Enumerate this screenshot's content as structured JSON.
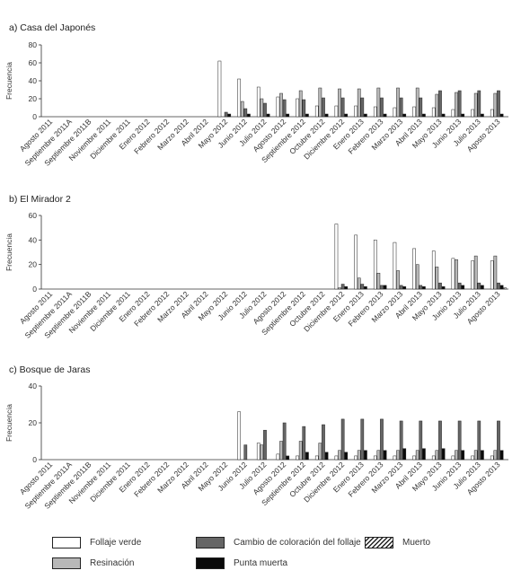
{
  "chart_data": {
    "type": "bar",
    "ylabel": "Frecuencia",
    "categories": [
      "Agosto 2011",
      "Septiembre 2011A",
      "Septiembre 2011B",
      "Noviembre 2011",
      "Diciembre 2011",
      "Enero 2012",
      "Febrero 2012",
      "Marzo 2012",
      "Abril 2012",
      "Mayo 2012",
      "Junio 2012",
      "Julio 2012",
      "Agosto 2012",
      "Septiembre 2012",
      "Octubre 2012",
      "Diciembre 2012",
      "Enero 2013",
      "Febrero 2013",
      "Marzo 2013",
      "Abril 2013",
      "Mayo 2013",
      "Junio 2013",
      "Julio 2013",
      "Agosto 2013"
    ],
    "legend": [
      {
        "name": "Follaje verde",
        "color": "#ffffff"
      },
      {
        "name": "Resinación",
        "color": "#b8b8b8"
      },
      {
        "name": "Cambio de coloración del follaje",
        "color": "#666666"
      },
      {
        "name": "Punta muerta",
        "color": "#0a0a0a"
      },
      {
        "name": "Muerto",
        "color": "hatched"
      }
    ],
    "panels": [
      {
        "title": "a) Casa del Japonés",
        "ylim": [
          0,
          80
        ],
        "yticks": [
          0,
          20,
          40,
          60,
          80
        ],
        "series": [
          {
            "name": "Follaje verde",
            "values": [
              null,
              null,
              null,
              null,
              null,
              null,
              null,
              null,
              null,
              62,
              42,
              33,
              22,
              20,
              12,
              12,
              12,
              11,
              10,
              11,
              10,
              8,
              8,
              8
            ]
          },
          {
            "name": "Resinación",
            "values": [
              null,
              null,
              null,
              null,
              null,
              null,
              null,
              null,
              null,
              0,
              17,
              20,
              26,
              29,
              32,
              31,
              31,
              32,
              32,
              32,
              25,
              27,
              26,
              26
            ]
          },
          {
            "name": "Cambio de coloración del follaje",
            "values": [
              null,
              null,
              null,
              null,
              null,
              null,
              null,
              null,
              null,
              5,
              9,
              15,
              19,
              19,
              21,
              21,
              21,
              21,
              21,
              21,
              29,
              29,
              29,
              29
            ]
          },
          {
            "name": "Punta muerta",
            "values": [
              null,
              null,
              null,
              null,
              null,
              null,
              null,
              null,
              null,
              3,
              3,
              3,
              3,
              3,
              3,
              3,
              3,
              3,
              3,
              3,
              3,
              3,
              3,
              3
            ]
          },
          {
            "name": "Muerto",
            "values": [
              null,
              null,
              null,
              null,
              null,
              null,
              null,
              null,
              null,
              0,
              0,
              0,
              0,
              0,
              0,
              0,
              0,
              0,
              0,
              0,
              0,
              0,
              0,
              0
            ]
          }
        ]
      },
      {
        "title": "b) El Mirador 2",
        "ylim": [
          0,
          60
        ],
        "yticks": [
          0,
          20,
          40,
          60
        ],
        "series": [
          {
            "name": "Follaje verde",
            "values": [
              null,
              null,
              null,
              null,
              null,
              null,
              null,
              null,
              null,
              null,
              null,
              null,
              null,
              null,
              null,
              53,
              44,
              40,
              38,
              33,
              31,
              25,
              23,
              23
            ]
          },
          {
            "name": "Resinación",
            "values": [
              null,
              null,
              null,
              null,
              null,
              null,
              null,
              null,
              null,
              null,
              null,
              null,
              null,
              null,
              null,
              1,
              9,
              13,
              15,
              20,
              18,
              24,
              27,
              27
            ]
          },
          {
            "name": "Cambio de coloración del follaje",
            "values": [
              null,
              null,
              null,
              null,
              null,
              null,
              null,
              null,
              null,
              null,
              null,
              null,
              null,
              null,
              null,
              4,
              4,
              3,
              3,
              3,
              5,
              5,
              5,
              5
            ]
          },
          {
            "name": "Punta muerta",
            "values": [
              null,
              null,
              null,
              null,
              null,
              null,
              null,
              null,
              null,
              null,
              null,
              null,
              null,
              null,
              null,
              2,
              2,
              3,
              2,
              2,
              2,
              3,
              3,
              3
            ]
          },
          {
            "name": "Muerto",
            "values": [
              null,
              null,
              null,
              null,
              null,
              null,
              null,
              null,
              null,
              null,
              null,
              null,
              null,
              null,
              null,
              0,
              0,
              0,
              0,
              0,
              0,
              0,
              0,
              1
            ]
          }
        ]
      },
      {
        "title": "c) Bosque de Jaras",
        "ylim": [
          0,
          40
        ],
        "yticks": [
          0,
          20,
          40
        ],
        "series": [
          {
            "name": "Follaje verde",
            "values": [
              null,
              null,
              null,
              null,
              null,
              null,
              null,
              null,
              null,
              null,
              26,
              9,
              3,
              2,
              2,
              2,
              2,
              2,
              2,
              2,
              2,
              2,
              2,
              2
            ]
          },
          {
            "name": "Resinación",
            "values": [
              null,
              null,
              null,
              null,
              null,
              null,
              null,
              null,
              null,
              null,
              0,
              8,
              10,
              10,
              9,
              5,
              5,
              5,
              5,
              5,
              5,
              5,
              5,
              5
            ]
          },
          {
            "name": "Cambio de coloración del follaje",
            "values": [
              null,
              null,
              null,
              null,
              null,
              null,
              null,
              null,
              null,
              null,
              8,
              16,
              20,
              18,
              19,
              22,
              22,
              22,
              21,
              21,
              21,
              21,
              21,
              21
            ]
          },
          {
            "name": "Punta muerta",
            "values": [
              null,
              null,
              null,
              null,
              null,
              null,
              null,
              null,
              null,
              null,
              0,
              0,
              2,
              4,
              4,
              4,
              5,
              5,
              6,
              6,
              6,
              5,
              5,
              5
            ]
          },
          {
            "name": "Muerto",
            "values": [
              null,
              null,
              null,
              null,
              null,
              null,
              null,
              null,
              null,
              null,
              0,
              0,
              0,
              0,
              0,
              0,
              0,
              0,
              0,
              0,
              0,
              0,
              0,
              0
            ]
          }
        ]
      }
    ]
  }
}
